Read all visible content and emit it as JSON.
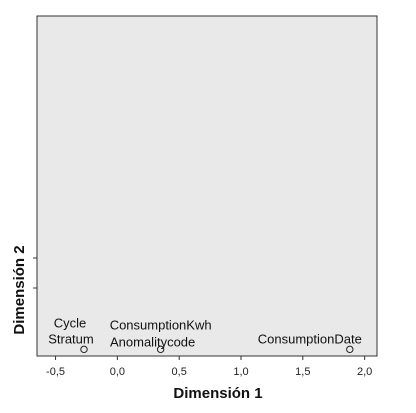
{
  "chart_data": {
    "type": "scatter",
    "xlabel": "Dimensión 1",
    "ylabel": "Dimensión 2",
    "x_ticks": [
      "-0,5",
      "0,0",
      "0,5",
      "1,0",
      "1,5",
      "2,0"
    ],
    "x_tick_values": [
      -0.5,
      0.0,
      0.5,
      1.0,
      1.5,
      2.0
    ],
    "xlim": [
      -0.65,
      2.1
    ],
    "ylim": [
      -0.02,
      1.45
    ],
    "grid": false,
    "background_color": "#e9e9e9",
    "points": [
      {
        "label": "Cycle",
        "x": -0.27,
        "y": 0.0
      },
      {
        "label": "Stratum",
        "x": -0.27,
        "y": 0.0
      },
      {
        "label": "ConsumptionKwh",
        "x": 0.35,
        "y": 0.0
      },
      {
        "label": "Anomalitycode",
        "x": 0.35,
        "y": 0.0
      },
      {
        "label": "ConsumptionDate",
        "x": 1.88,
        "y": 0.0
      }
    ]
  }
}
